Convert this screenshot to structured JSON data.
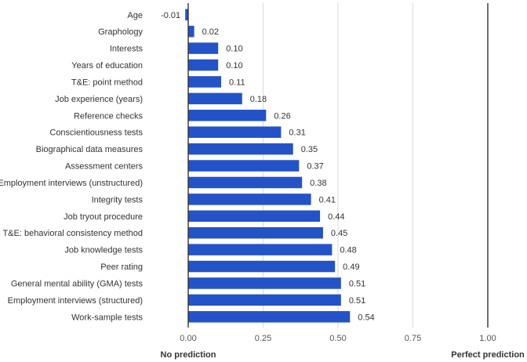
{
  "chart_data": {
    "type": "bar",
    "orientation": "horizontal",
    "categories": [
      "Age",
      "Graphology",
      "Interests",
      "Years of education",
      "T&E: point method",
      "Job experience (years)",
      "Reference checks",
      "Conscientiousness tests",
      "Biographical data measures",
      "Assessment centers",
      "Employment interviews (unstructured)",
      "Integrity tests",
      "Job tryout procedure",
      "T&E: behavioral consistency method",
      "Job knowledge tests",
      "Peer rating",
      "General mental ability (GMA) tests",
      "Employment interviews (structured)",
      "Work-sample tests"
    ],
    "values": [
      -0.01,
      0.02,
      0.1,
      0.1,
      0.11,
      0.18,
      0.26,
      0.31,
      0.35,
      0.37,
      0.38,
      0.41,
      0.44,
      0.45,
      0.48,
      0.49,
      0.51,
      0.51,
      0.54
    ],
    "value_labels": [
      "-0.01",
      "0.02",
      "0.10",
      "0.10",
      "0.11",
      "0.18",
      "0.26",
      "0.31",
      "0.35",
      "0.37",
      "0.38",
      "0.41",
      "0.44",
      "0.45",
      "0.48",
      "0.49",
      "0.51",
      "0.51",
      "0.54"
    ],
    "x_ticks": [
      0,
      0.25,
      0.5,
      0.75,
      1.0
    ],
    "x_tick_labels": [
      "0.00",
      "0.25",
      "0.50",
      "0.75",
      "1.00"
    ],
    "xlim": [
      0,
      1.0
    ],
    "axis_notes": {
      "left": "No prediction",
      "right": "Perfect prediction"
    },
    "grid": true,
    "bar_color": "#2453c8",
    "reference_line_color": "#333333"
  }
}
